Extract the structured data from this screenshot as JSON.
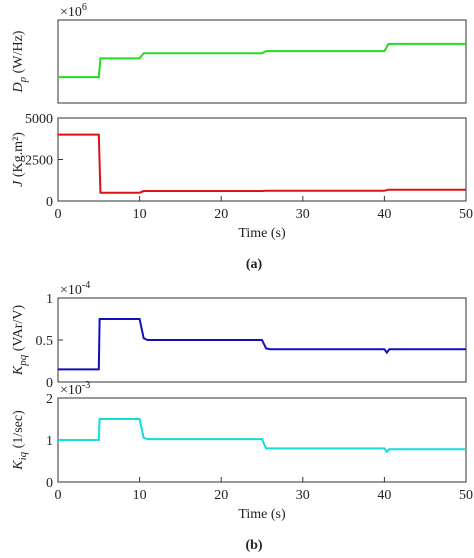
{
  "chart_data": [
    {
      "type": "line",
      "x": [
        0,
        5,
        5.2,
        10,
        10.5,
        25,
        25.5,
        40,
        40.5,
        50
      ],
      "series": [
        {
          "name": "Dp",
          "color": "#22dd22",
          "values": [
            1.25,
            1.25,
            2.15,
            2.15,
            2.4,
            2.4,
            2.5,
            2.5,
            2.85,
            2.85
          ]
        }
      ],
      "xlim": [
        0,
        50
      ],
      "ylim": [
        0,
        4
      ],
      "ylabel_symbol": "D",
      "ylabel_sub": "p",
      "ylabel_unit": "(W/Hz)",
      "y_exponent_base": "×10",
      "y_exponent_power": "6"
    },
    {
      "type": "line",
      "x": [
        0,
        5,
        5.2,
        10,
        10.5,
        25,
        25.5,
        40,
        40.5,
        50
      ],
      "series": [
        {
          "name": "J",
          "color": "#dd1111",
          "values": [
            4000,
            4000,
            500,
            500,
            600,
            600,
            620,
            620,
            680,
            680
          ]
        }
      ],
      "xlim": [
        0,
        50
      ],
      "ylim": [
        0,
        5000
      ],
      "yticks": [
        0,
        2500,
        5000
      ],
      "xticks": [
        0,
        10,
        20,
        30,
        40,
        50
      ],
      "ylabel_symbol": "J",
      "ylabel_unit": "(Kg.m²)",
      "xlabel": "Time (s)",
      "panel_label": "(a)"
    },
    {
      "type": "line",
      "x": [
        0,
        5,
        5.1,
        10,
        10.5,
        11,
        25,
        25.5,
        26,
        40,
        40.3,
        40.6,
        50
      ],
      "series": [
        {
          "name": "Kpq",
          "color": "#1111bb",
          "values": [
            0.15,
            0.15,
            0.75,
            0.75,
            0.52,
            0.5,
            0.5,
            0.4,
            0.39,
            0.39,
            0.35,
            0.39,
            0.39
          ]
        }
      ],
      "xlim": [
        0,
        50
      ],
      "ylim": [
        0,
        1
      ],
      "yticks": [
        0,
        0.5,
        1
      ],
      "ylabel_symbol": "K",
      "ylabel_sub": "pq",
      "ylabel_unit": "(VAr/V)",
      "y_exponent_base": "×10",
      "y_exponent_power": "-4"
    },
    {
      "type": "line",
      "x": [
        0,
        5,
        5.1,
        10,
        10.5,
        11,
        25,
        25.5,
        26,
        40,
        40.3,
        40.6,
        50
      ],
      "series": [
        {
          "name": "Kiq",
          "color": "#11dddd",
          "values": [
            1,
            1,
            1.5,
            1.5,
            1.05,
            1.02,
            1.02,
            0.8,
            0.8,
            0.8,
            0.72,
            0.78,
            0.78
          ]
        }
      ],
      "xlim": [
        0,
        50
      ],
      "ylim": [
        0,
        2
      ],
      "yticks": [
        0,
        1,
        2
      ],
      "xticks": [
        0,
        10,
        20,
        30,
        40,
        50
      ],
      "ylabel_symbol": "K",
      "ylabel_sub": "iq",
      "ylabel_unit": "(1/sec)",
      "y_exponent_base": "×10",
      "y_exponent_power": "-3",
      "xlabel": "Time (s)",
      "panel_label": "(b)"
    }
  ]
}
